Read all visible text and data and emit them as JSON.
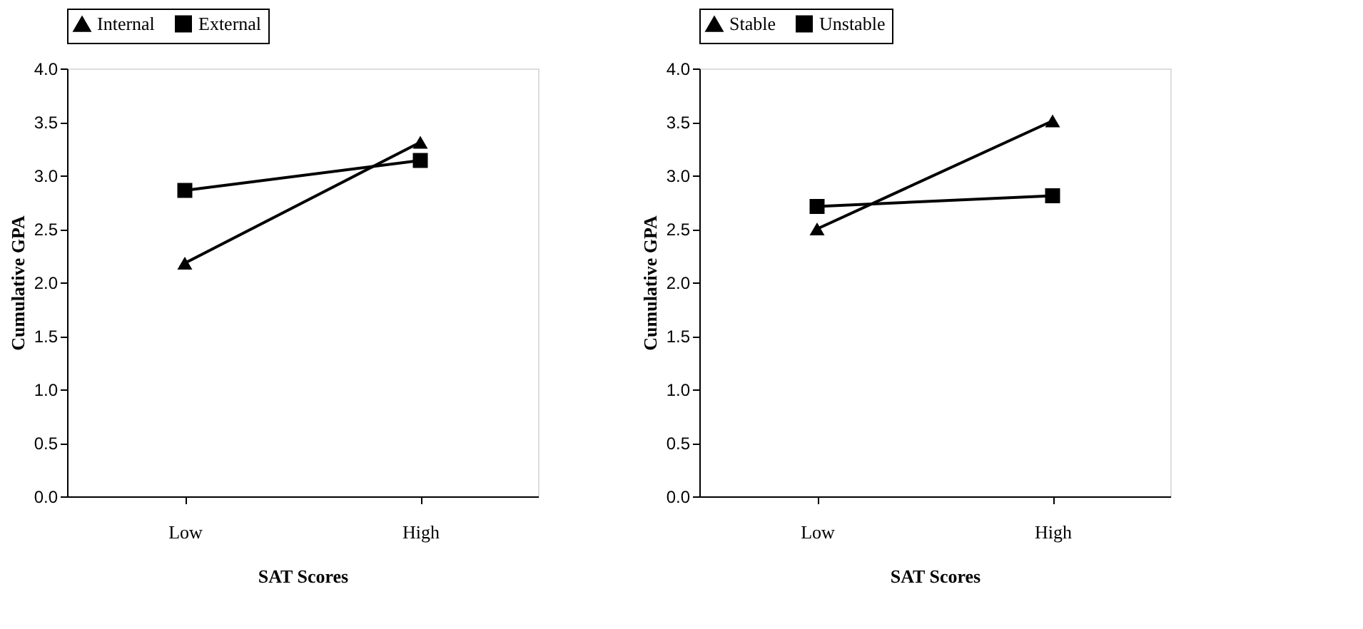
{
  "chart_data": [
    {
      "type": "line",
      "categories": [
        "Low",
        "High"
      ],
      "xlabel": "SAT Scores",
      "ylabel": "Cumulative GPA",
      "ylim": [
        0,
        4
      ],
      "yticks": [
        {
          "value": 0,
          "label": "0.0"
        },
        {
          "value": 0.5,
          "label": "0.5"
        },
        {
          "value": 1,
          "label": "1.0"
        },
        {
          "value": 1.5,
          "label": "1.5"
        },
        {
          "value": 2,
          "label": "2.0"
        },
        {
          "value": 2.5,
          "label": "2.5"
        },
        {
          "value": 3,
          "label": "3.0"
        },
        {
          "value": 3.5,
          "label": "3.5"
        },
        {
          "value": 4,
          "label": "4.0"
        }
      ],
      "legend": "top",
      "grid": false,
      "line_style": "solid",
      "series": [
        {
          "name": "Internal",
          "color": "#000000",
          "marker": "triangle",
          "values": [
            2.18,
            3.31
          ]
        },
        {
          "name": "External",
          "color": "#000000",
          "marker": "square",
          "values": [
            2.86,
            3.14
          ]
        }
      ]
    },
    {
      "type": "line",
      "categories": [
        "Low",
        "High"
      ],
      "xlabel": "SAT Scores",
      "ylabel": "Cumulative GPA",
      "ylim": [
        0,
        4
      ],
      "yticks": [
        {
          "value": 0,
          "label": "0.0"
        },
        {
          "value": 0.5,
          "label": "0.5"
        },
        {
          "value": 1,
          "label": "1.0"
        },
        {
          "value": 1.5,
          "label": "1.5"
        },
        {
          "value": 2,
          "label": "2.0"
        },
        {
          "value": 2.5,
          "label": "2.5"
        },
        {
          "value": 3,
          "label": "3.0"
        },
        {
          "value": 3.5,
          "label": "3.5"
        },
        {
          "value": 4,
          "label": "4.0"
        }
      ],
      "legend": "top",
      "grid": false,
      "line_style": "solid",
      "series": [
        {
          "name": "Stable",
          "color": "#000000",
          "marker": "triangle",
          "values": [
            2.5,
            3.51
          ]
        },
        {
          "name": "Unstable",
          "color": "#000000",
          "marker": "square",
          "values": [
            2.71,
            2.81
          ]
        }
      ]
    }
  ]
}
